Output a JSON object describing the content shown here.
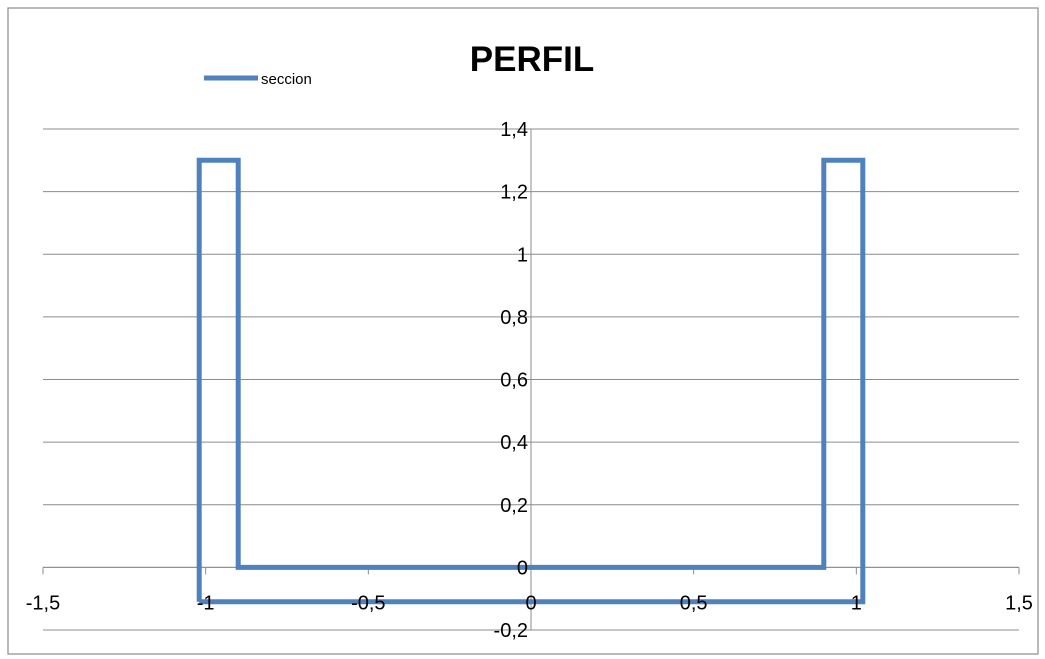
{
  "chart_data": {
    "type": "line",
    "title": "PERFIL",
    "xlabel": "",
    "ylabel": "",
    "xlim": [
      -1.5,
      1.5
    ],
    "ylim": [
      -0.2,
      1.4
    ],
    "x_ticks": [
      -1.5,
      -1,
      -0.5,
      0,
      0.5,
      1,
      1.5
    ],
    "y_ticks": [
      -0.2,
      0,
      0.2,
      0.4,
      0.6,
      0.8,
      1,
      1.2,
      1.4
    ],
    "x_tick_labels": [
      "-1,5",
      "-1",
      "-0,5",
      "0",
      "0,5",
      "1",
      "1,5"
    ],
    "y_tick_labels": [
      "-0,2",
      "0",
      "0,2",
      "0,4",
      "0,6",
      "0,8",
      "1",
      "1,2",
      "1,4"
    ],
    "grid": "horizontal",
    "legend_position": "top-left",
    "series": [
      {
        "name": "seccion",
        "color": "#4F81BD",
        "points": [
          [
            -1.02,
            -0.11
          ],
          [
            -1.02,
            1.3
          ],
          [
            -0.9,
            1.3
          ],
          [
            -0.9,
            0
          ],
          [
            0.9,
            0
          ],
          [
            0.9,
            1.3
          ],
          [
            1.02,
            1.3
          ],
          [
            1.02,
            -0.11
          ],
          [
            -1.02,
            -0.11
          ]
        ]
      }
    ]
  }
}
